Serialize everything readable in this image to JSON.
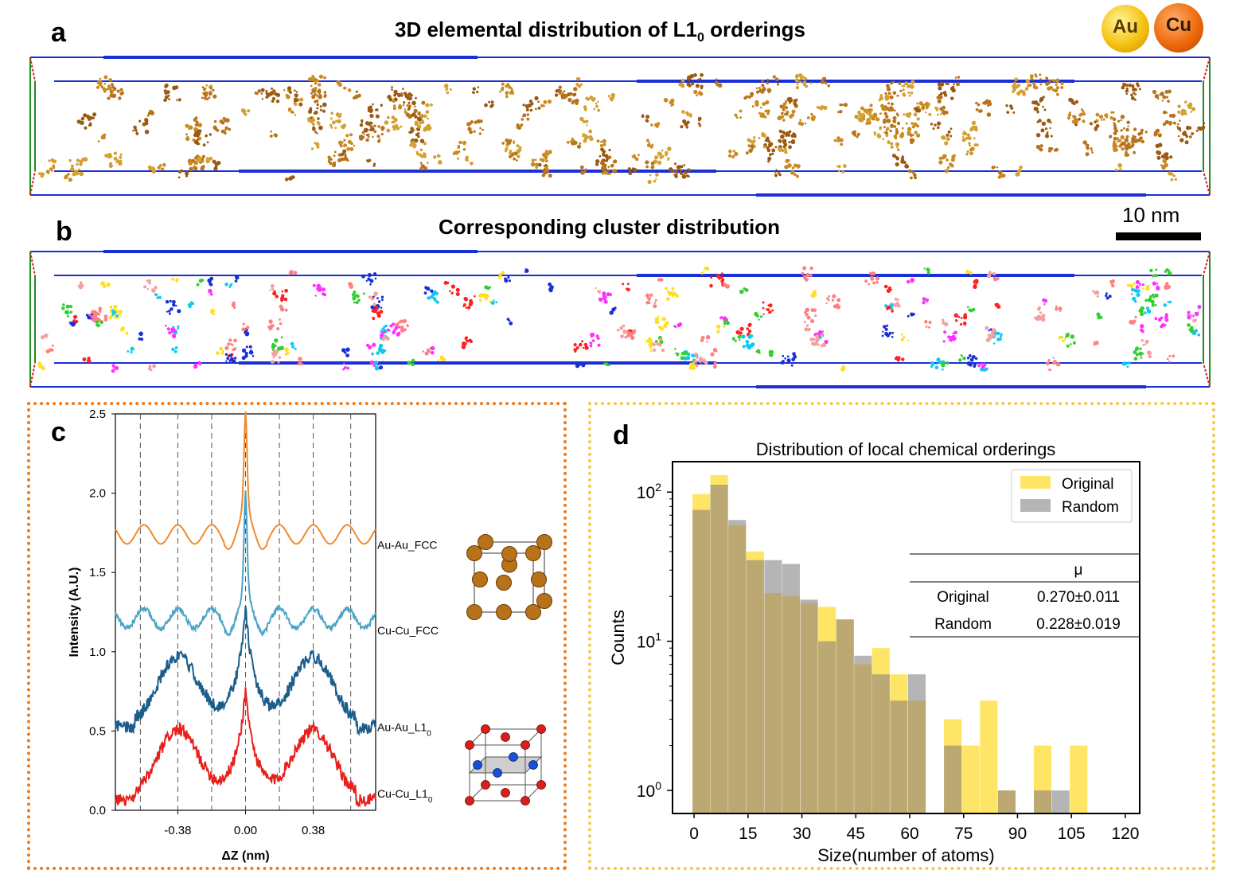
{
  "panels": {
    "a": {
      "letter": "a",
      "title_main": "3D elemental distribution of L1",
      "title_sub": "0",
      "title_tail": " orderings"
    },
    "b": {
      "letter": "b",
      "title": "Corresponding cluster distribution"
    },
    "c": {
      "letter": "c"
    },
    "d": {
      "letter": "d"
    }
  },
  "legend_atoms": {
    "au": "Au",
    "cu": "Cu"
  },
  "scalebar": {
    "label": "10 nm"
  },
  "colors": {
    "au_atom": "#f5c211",
    "cu_atom": "#ee6a0c",
    "box_blue": "#1a2fd6",
    "box_green": "#1f8a1f",
    "cluster_orange": "#b8741a",
    "panel_c_border": "#f07a1a",
    "panel_d_border": "#f5c84a",
    "au_fcc": "#f08a2e",
    "cu_fcc": "#4aa3c8",
    "au_l10": "#1b5e8c",
    "cu_l10": "#e8201c",
    "original": "#ffe566",
    "random": "#b5b5b5",
    "overlap": "#bca873"
  },
  "chart_data": [
    {
      "type": "line",
      "panel": "c",
      "xlabel": "ΔZ (nm)",
      "ylabel": "Intensity (A.U.)",
      "ylim": [
        0,
        2.5
      ],
      "xlim": [
        -0.73,
        0.73
      ],
      "xticks": [
        "-0.38",
        "0.00",
        "0.38"
      ],
      "yticks": [
        "0.0",
        "0.5",
        "1.0",
        "1.5",
        "2.0",
        "2.5"
      ],
      "dashed_lines_x": [
        -0.59,
        -0.38,
        -0.19,
        0.0,
        0.19,
        0.38,
        0.59
      ],
      "series": [
        {
          "name": "Au-Au_FCC",
          "label_main": "Au-Au_FCC",
          "label_sub": "",
          "baseline": 1.68,
          "peak": 2.48,
          "shape": "fcc",
          "color": "#f08a2e"
        },
        {
          "name": "Cu-Cu_FCC",
          "label_main": "Cu-Cu_FCC",
          "label_sub": "",
          "baseline": 1.15,
          "peak": 1.97,
          "shape": "fcc",
          "color": "#4aa3c8"
        },
        {
          "name": "Au-Au_L10",
          "label_main": "Au-Au_L1",
          "label_sub": "0",
          "baseline": 0.53,
          "peak": 1.5,
          "shape": "l10",
          "color": "#1b5e8c"
        },
        {
          "name": "Cu-Cu_L10",
          "label_main": "Cu-Cu_L1",
          "label_sub": "0",
          "baseline": 0.07,
          "peak": 0.97,
          "shape": "l10",
          "color": "#e8201c"
        }
      ]
    },
    {
      "type": "bar",
      "panel": "d",
      "title": "Distribution of local chemical orderings",
      "xlabel": "Size(number of atoms)",
      "ylabel": "Counts",
      "yscale": "log",
      "ylim": [
        0.7,
        160
      ],
      "xlim": [
        -6,
        124
      ],
      "xticks": [
        "0",
        "15",
        "30",
        "45",
        "60",
        "75",
        "90",
        "105",
        "120"
      ],
      "yticks": [
        {
          "base": "10",
          "exp": "0",
          "v": 1
        },
        {
          "base": "10",
          "exp": "1",
          "v": 10
        },
        {
          "base": "10",
          "exp": "2",
          "v": 100
        }
      ],
      "bin_width": 4.9,
      "x": [
        2,
        7,
        12,
        17,
        22,
        27,
        32,
        37,
        42,
        47,
        52,
        57,
        62,
        67,
        72,
        77,
        82,
        87,
        92,
        97,
        102,
        107,
        112
      ],
      "series": [
        {
          "name": "Original",
          "values": [
            97,
            130,
            60,
            40,
            21,
            20,
            18,
            17,
            14,
            7,
            9,
            6,
            4,
            0,
            3,
            2,
            4,
            1,
            0,
            2,
            0,
            2,
            0
          ]
        },
        {
          "name": "Random",
          "values": [
            76,
            112,
            65,
            35,
            35,
            33,
            19,
            10,
            14,
            8,
            6,
            4,
            6,
            0,
            2,
            0,
            0,
            1,
            0,
            1,
            1,
            0,
            0
          ]
        }
      ],
      "table": {
        "header": "μ",
        "rows": [
          {
            "label": "Original",
            "value": "0.270±0.011"
          },
          {
            "label": "Random",
            "value": "0.228±0.019"
          }
        ]
      }
    }
  ]
}
